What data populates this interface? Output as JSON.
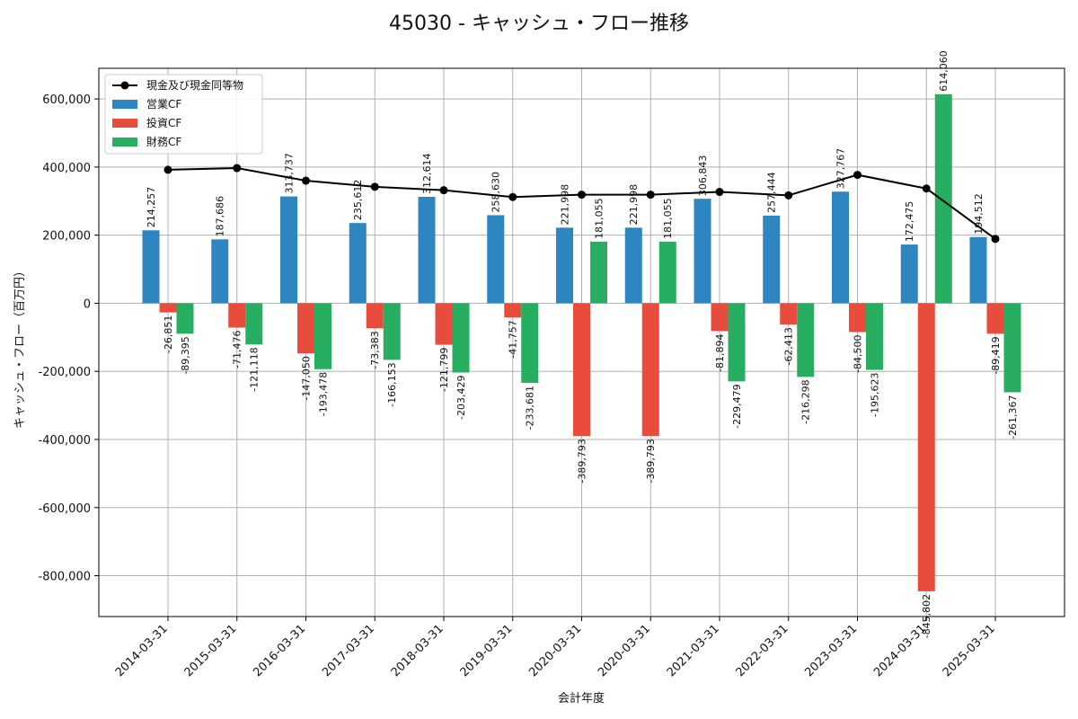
{
  "chart_data": {
    "type": "bar",
    "title": "45030 - キャッシュ・フロー推移",
    "xlabel": "会計年度",
    "ylabel": "キャッシュ・フロー（百万円）",
    "categories": [
      "2014-03-31",
      "2015-03-31",
      "2016-03-31",
      "2017-03-31",
      "2018-03-31",
      "2019-03-31",
      "2020-03-31",
      "2020-03-31",
      "2021-03-31",
      "2022-03-31",
      "2023-03-31",
      "2024-03-31",
      "2025-03-31"
    ],
    "series": [
      {
        "name": "営業CF",
        "kind": "bar",
        "color": "#2e86c1",
        "values": [
          214257,
          187686,
          313737,
          235612,
          312614,
          258630,
          221998,
          221998,
          306843,
          257444,
          327767,
          172475,
          194512
        ],
        "labels": [
          "214,257",
          "187,686",
          "313,737",
          "235,612",
          "312,614",
          "258,630",
          "221,998",
          "221,998",
          "306,843",
          "257,444",
          "327,767",
          "172,475",
          "194,512"
        ]
      },
      {
        "name": "投資CF",
        "kind": "bar",
        "color": "#e74c3c",
        "values": [
          -26851,
          -71476,
          -147050,
          -73383,
          -121799,
          -41757,
          -389793,
          -389793,
          -81894,
          -62413,
          -84500,
          -845802,
          -89419
        ],
        "labels": [
          "-26,851",
          "-71,476",
          "-147,050",
          "-73,383",
          "-121,799",
          "-41,757",
          "-389,793",
          "-389,793",
          "-81,894",
          "-62,413",
          "-84,500",
          "-845,802",
          "-89,419"
        ]
      },
      {
        "name": "財務CF",
        "kind": "bar",
        "color": "#27ae60",
        "values": [
          -89395,
          -121118,
          -193478,
          -166153,
          -203429,
          -233681,
          181055,
          181055,
          -229479,
          -216298,
          -195623,
          614060,
          -261367
        ],
        "labels": [
          "-89,395",
          "-121,118",
          "-193,478",
          "-166,153",
          "-203,429",
          "-233,681",
          "181,055",
          "181,055",
          "-229,479",
          "-216,298",
          "-195,623",
          "614,060",
          "-261,367"
        ]
      },
      {
        "name": "現金及び現金同等物",
        "kind": "line",
        "color": "#000000",
        "values": [
          392000,
          397000,
          360000,
          342000,
          332000,
          312000,
          319000,
          319000,
          327000,
          317000,
          377000,
          337000,
          189000
        ]
      }
    ],
    "ylim": [
      -920000,
      690000
    ],
    "yticks": [
      -800000,
      -600000,
      -400000,
      -200000,
      0,
      200000,
      400000,
      600000
    ],
    "ytick_labels": [
      "-800,000",
      "-600,000",
      "-400,000",
      "-200,000",
      "0",
      "200,000",
      "400,000",
      "600,000"
    ],
    "grid": true,
    "legend_position": "top-left"
  }
}
